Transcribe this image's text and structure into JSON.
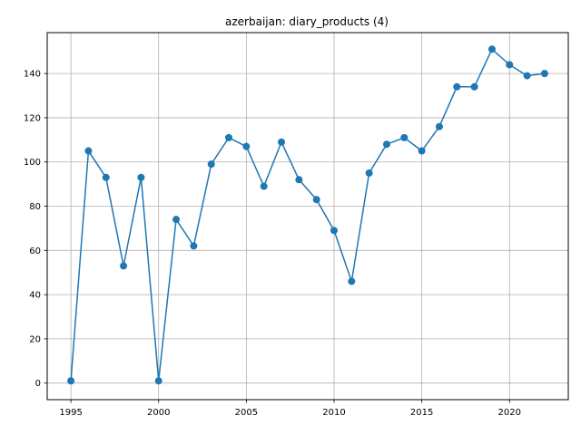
{
  "chart_data": {
    "type": "line",
    "title": "azerbaijan: diary_products (4)",
    "xlabel": "",
    "ylabel": "",
    "grid": true,
    "xlim": [
      1993.65,
      2023.35
    ],
    "ylim": [
      -7.5,
      158.5
    ],
    "x_ticks": [
      1995,
      2000,
      2005,
      2010,
      2015,
      2020
    ],
    "y_ticks": [
      0,
      20,
      40,
      60,
      80,
      100,
      120,
      140
    ],
    "line_color": "#1f77b4",
    "series": [
      {
        "x": [
          1995,
          1996,
          1997,
          1998,
          1999,
          2000,
          2001,
          2002,
          2003,
          2004,
          2005,
          2006,
          2007,
          2008,
          2009,
          2010,
          2011,
          2012,
          2013,
          2014,
          2015,
          2016,
          2017,
          2018,
          2019,
          2020,
          2021,
          2022
        ],
        "values": [
          1,
          105,
          93,
          53,
          93,
          1,
          74,
          62,
          99,
          111,
          107,
          89,
          109,
          92,
          83,
          69,
          46,
          95,
          108,
          111,
          105,
          116,
          134,
          134,
          151,
          144,
          139,
          140
        ]
      }
    ]
  }
}
